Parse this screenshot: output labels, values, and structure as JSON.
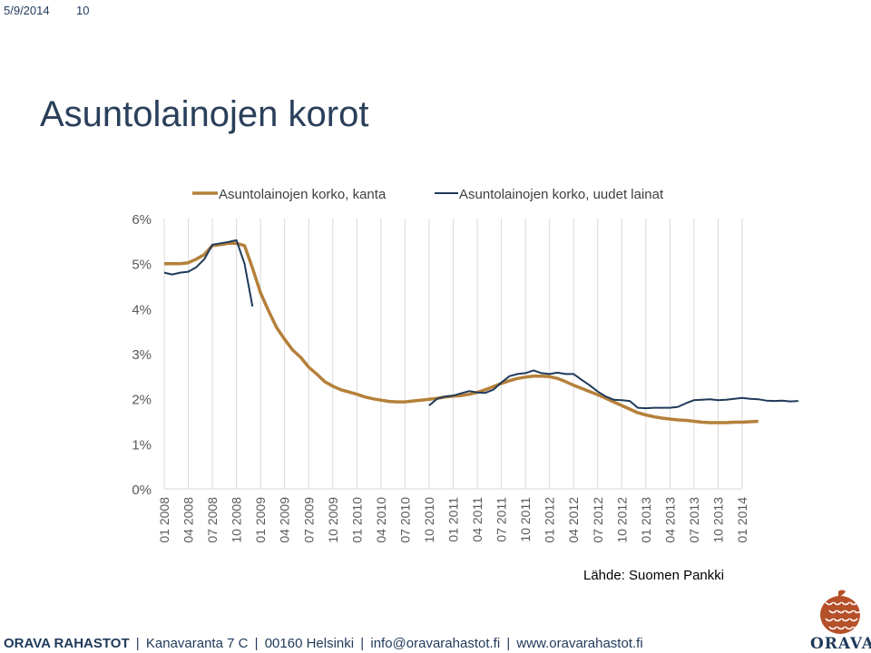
{
  "header": {
    "date": "5/9/2014",
    "slide_number": "10"
  },
  "title": "Asuntolainojen korot",
  "source": "Lähde: Suomen Pankki",
  "footer": {
    "brand": "ORAVA RAHASTOT",
    "address": "Kanavaranta 7 C",
    "postal": "00160 Helsinki",
    "email": "info@oravarahastot.fi",
    "web": "www.oravarahastot.fi",
    "separator": "|"
  },
  "logo": {
    "text": "ORAVA",
    "icon": "pinecone-icon",
    "color": "#b5502a"
  },
  "chart_data": {
    "type": "line",
    "title": "",
    "xlabel": "",
    "ylabel": "",
    "ylim": [
      0,
      6
    ],
    "y_ticks": [
      "0%",
      "1%",
      "2%",
      "3%",
      "4%",
      "5%",
      "6%"
    ],
    "x_tick_labels": [
      "01 2008",
      "04 2008",
      "07 2008",
      "10 2008",
      "01 2009",
      "04 2009",
      "07 2009",
      "10 2009",
      "01 2010",
      "04 2010",
      "07 2010",
      "10 2010",
      "01 2011",
      "04 2011",
      "07 2011",
      "10 2011",
      "01 2012",
      "04 2012",
      "07 2012",
      "10 2012",
      "01 2013",
      "04 2013",
      "07 2013",
      "10 2013",
      "01 2014"
    ],
    "grid": "vertical",
    "legend_position": "top",
    "series": [
      {
        "name": "Asuntolainojen korko, kanta",
        "color": "#b5803a",
        "start": "01 2008",
        "values": [
          5.0,
          5.0,
          5.0,
          5.02,
          5.1,
          5.2,
          5.4,
          5.42,
          5.45,
          5.45,
          5.4,
          4.9,
          4.35,
          3.95,
          3.58,
          3.32,
          3.08,
          2.92,
          2.7,
          2.55,
          2.38,
          2.28,
          2.2,
          2.15,
          2.1,
          2.04,
          2.0,
          1.97,
          1.94,
          1.93,
          1.93,
          1.95,
          1.97,
          1.99,
          2.01,
          2.04,
          2.06,
          2.07,
          2.1,
          2.14,
          2.2,
          2.27,
          2.34,
          2.4,
          2.45,
          2.48,
          2.5,
          2.5,
          2.49,
          2.45,
          2.38,
          2.3,
          2.23,
          2.16,
          2.09,
          2.01,
          1.93,
          1.85,
          1.77,
          1.69,
          1.64,
          1.6,
          1.57,
          1.55,
          1.53,
          1.52,
          1.5,
          1.48,
          1.47,
          1.47,
          1.47,
          1.48,
          1.48,
          1.49,
          1.5
        ]
      },
      {
        "name": "Asuntolainojen korko, uudet lainat",
        "color": "#1f3a5a",
        "segments": [
          {
            "start": "01 2008",
            "values": [
              4.8,
              4.76,
              4.8,
              4.82,
              4.92,
              5.1,
              5.42,
              5.45,
              5.48,
              5.52,
              5.0,
              4.05
            ]
          },
          {
            "start": "10 2010",
            "values": [
              1.85,
              2.0,
              2.05,
              2.07,
              2.12,
              2.17,
              2.14,
              2.13,
              2.2,
              2.36,
              2.5,
              2.55,
              2.57,
              2.63,
              2.57,
              2.55,
              2.58,
              2.55,
              2.55,
              2.42,
              2.3,
              2.16,
              2.05,
              1.98,
              1.97,
              1.95,
              1.8,
              1.79,
              1.8,
              1.8,
              1.8,
              1.82,
              1.9,
              1.97,
              1.98,
              1.99,
              1.97,
              1.98,
              2.0,
              2.02,
              2.0,
              1.99,
              1.96,
              1.95,
              1.96,
              1.94,
              1.95
            ]
          }
        ]
      }
    ]
  }
}
